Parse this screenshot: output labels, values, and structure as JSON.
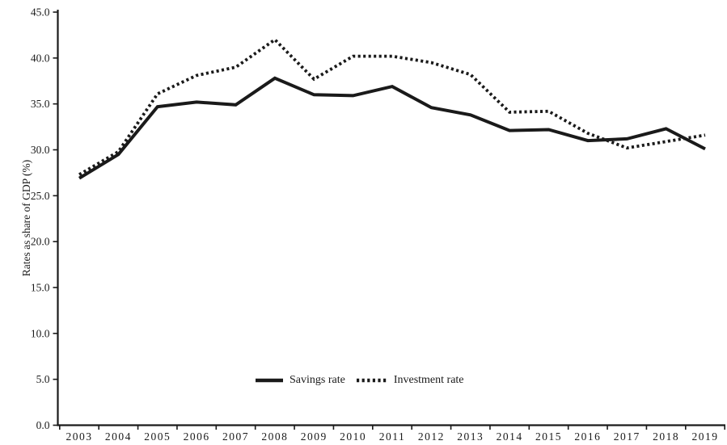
{
  "figure": {
    "background": "#ffffff",
    "line_color": "#1a1a1a",
    "text_color": "#1a1a1a"
  },
  "chart_data": {
    "type": "line",
    "title": "",
    "xlabel": "",
    "ylabel": "Rates as share of GDP (%)",
    "x": [
      2003,
      2004,
      2005,
      2006,
      2007,
      2008,
      2009,
      2010,
      2011,
      2012,
      2013,
      2014,
      2015,
      2016,
      2017,
      2018,
      2019
    ],
    "series": [
      {
        "name": "Savings rate",
        "style": "solid",
        "values": [
          26.9,
          29.5,
          34.7,
          35.2,
          34.9,
          37.8,
          36.0,
          35.9,
          36.9,
          34.6,
          33.8,
          32.1,
          32.2,
          31.0,
          31.2,
          32.3,
          30.1
        ]
      },
      {
        "name": "Investment rate",
        "style": "dotted",
        "values": [
          27.3,
          29.8,
          36.1,
          38.1,
          39.0,
          42.0,
          37.7,
          40.2,
          40.2,
          39.5,
          38.2,
          34.1,
          34.2,
          31.8,
          30.2,
          30.9,
          31.6
        ]
      }
    ],
    "ylim": [
      0,
      45
    ],
    "ytick_step": 5,
    "ytick_format": "one-decimal",
    "grid": false,
    "legend_position": "inside-bottom-center"
  }
}
